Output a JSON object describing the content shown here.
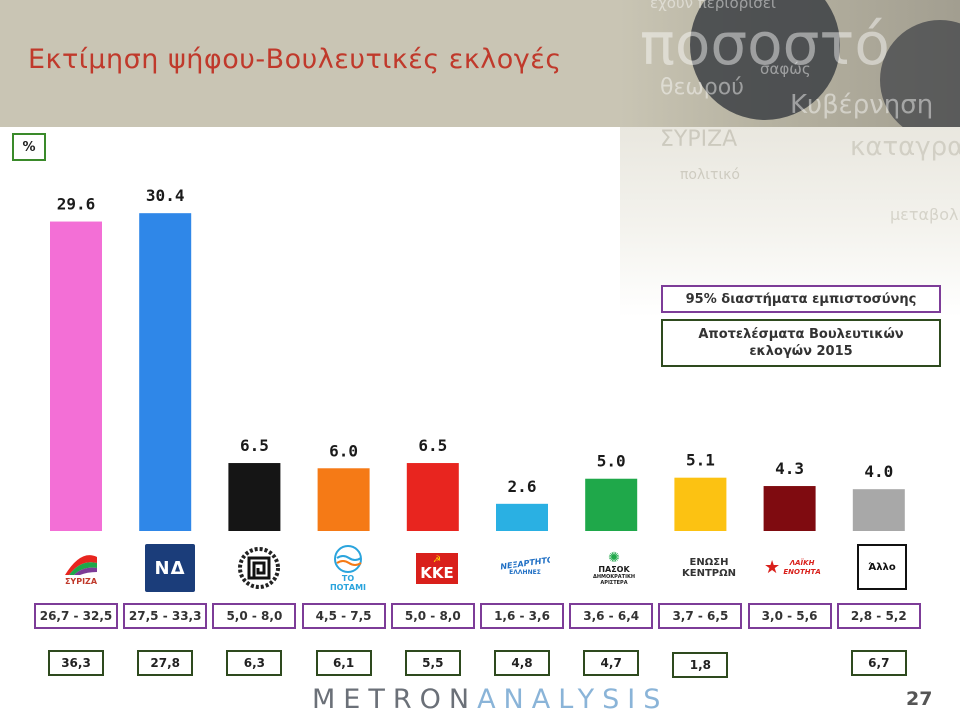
{
  "title": "Εκτίμηση ψήφου-Βουλευτικές εκλογές",
  "unit": "%",
  "legend": {
    "ci_label": "95% διαστήματα εμπιστοσύνης",
    "results_label": "Αποτελέσματα Βουλευτικών εκλογών 2015",
    "ci_color": "#7d3c98",
    "results_color": "#2e4a1e"
  },
  "chart_data": {
    "type": "bar",
    "categories": [
      "ΣΥΡΙΖΑ",
      "ΝΔ",
      "Χρυσή Αυγή",
      "ΤΟ ΠΟΤΑΜΙ",
      "ΚΚΕ",
      "ΑΝΕΞΑΡΤΗΤΟΙ ΕΛΛΗΝΕΣ",
      "ΠΑΣΟΚ ΔΗΜΟΚΡΑΤΙΚΗ ΑΡΙΣΤΕΡΑ",
      "ΕΝΩΣΗ ΚΕΝΤΡΩΝ",
      "ΛΑΪΚΗ ΕΝΟΤΗΤΑ",
      "Άλλο"
    ],
    "values": [
      29.6,
      30.4,
      6.5,
      6.0,
      6.5,
      2.6,
      5.0,
      5.1,
      4.3,
      4.0
    ],
    "value_labels": [
      "29.6",
      "30.4",
      "6.5",
      "6.0",
      "6.5",
      "2.6",
      "5.0",
      "5.1",
      "4.3",
      "4.0"
    ],
    "colors": [
      "#f36fd6",
      "#2f87e8",
      "#151515",
      "#f57a16",
      "#e8251f",
      "#2ab0e3",
      "#1fa84a",
      "#fcc212",
      "#7f0b10",
      "#a8a8a8"
    ],
    "confidence_intervals": [
      "26,7 - 32,5",
      "27,5 - 33,3",
      "5,0 - 8,0",
      "4,5 - 7,5",
      "5,0 - 8,0",
      "1,6 - 3,6",
      "3,6 - 6,4",
      "3,7 - 6,5",
      "3,0 - 5,6",
      "2,8 - 5,2"
    ],
    "previous_results": [
      "36,3",
      "27,8",
      "6,3",
      "6,1",
      "5,5",
      "4,8",
      "4,7",
      "1,8",
      null,
      "6,7"
    ],
    "ylim": [
      0,
      33
    ],
    "grid": false,
    "legend_position": "right"
  },
  "logos": {
    "syriza": "ΣΥΡΙΖΑ",
    "nd": "ΝΔ",
    "potami": "ΤΟ ΠΟΤΑΜΙ",
    "kke": "ΚΚΕ",
    "anel": "ΑΝΕΞΑΡΤΗΤΟΙ",
    "anel_sub": "ΕΛΛΗΝΕΣ",
    "pasok": "ΠΑΣΟΚ",
    "pasok_sub": "ΔΗΜΟΚΡΑΤΙΚΗ ΑΡΙΣΤΕΡΑ",
    "enosi_1": "ΕΝΩΣΗ",
    "enosi_2": "ΚΕΝΤΡΩΝ",
    "laiki": "ΛΑΪΚΗ ΕΝΟΤΗΤΑ",
    "allo": "Άλλο"
  },
  "footer": {
    "brand_a": "METRON",
    "brand_b": "ANALYSIS",
    "page_number": "27"
  }
}
